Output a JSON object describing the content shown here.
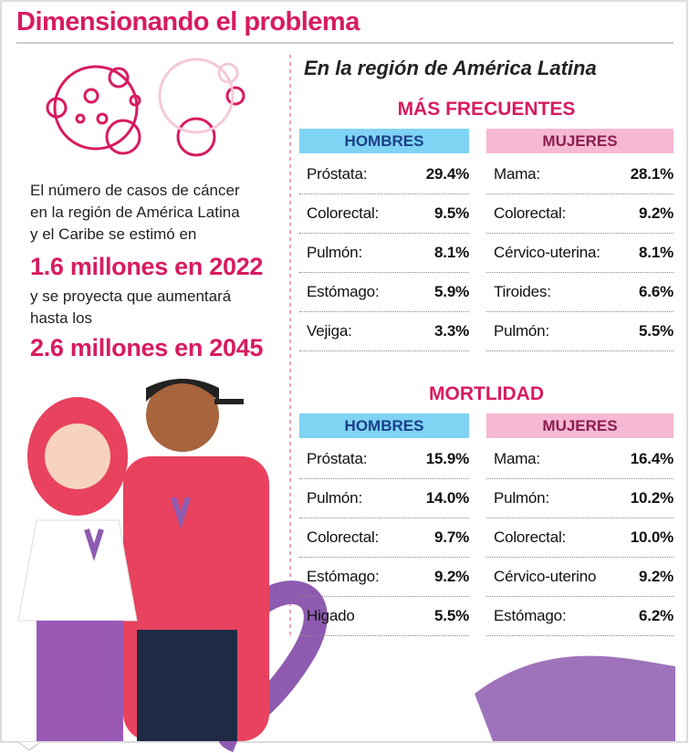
{
  "title": "Dimensionando el problema",
  "intro": {
    "lines1": [
      "El número de casos de cáncer",
      "en la región de América Latina",
      "y el Caribe se estimó en"
    ],
    "highlight1": "1.6 millones en 2022",
    "lines2": [
      "y se proyecta que aumentará",
      "hasta los"
    ],
    "highlight2": "2.6 millones en 2045"
  },
  "region_title": "En la región de América Latina",
  "sections": [
    {
      "title": "MÁS FRECUENTES",
      "groups": [
        {
          "header": "HOMBRES",
          "rows": [
            [
              "Próstata:",
              "29.4%"
            ],
            [
              "Colorectal:",
              "9.5%"
            ],
            [
              "Pulmón:",
              "8.1%"
            ],
            [
              "Estómago:",
              "5.9%"
            ],
            [
              "Vejiga:",
              "3.3%"
            ]
          ]
        },
        {
          "header": "MUJERES",
          "rows": [
            [
              "Mama:",
              "28.1%"
            ],
            [
              "Colorectal:",
              "9.2%"
            ],
            [
              "Cérvico-uterina:",
              "8.1%"
            ],
            [
              "Tiroides:",
              "6.6%"
            ],
            [
              "Pulmón:",
              "5.5%"
            ]
          ]
        }
      ]
    },
    {
      "title": "MORTLIDAD",
      "groups": [
        {
          "header": "HOMBRES",
          "rows": [
            [
              "Próstata:",
              "15.9%"
            ],
            [
              "Pulmón:",
              "14.0%"
            ],
            [
              "Colorectal:",
              "9.7%"
            ],
            [
              "Estómago:",
              "9.2%"
            ],
            [
              "Higado",
              "5.5%"
            ]
          ]
        },
        {
          "header": "MUJERES",
          "rows": [
            [
              "Mama:",
              "16.4%"
            ],
            [
              "Pulmón:",
              "10.2%"
            ],
            [
              "Colorectal:",
              "10.0%"
            ],
            [
              "Cérvico-uterino",
              "9.2%"
            ],
            [
              "Estómago:",
              "6.2%"
            ]
          ]
        }
      ]
    }
  ]
}
